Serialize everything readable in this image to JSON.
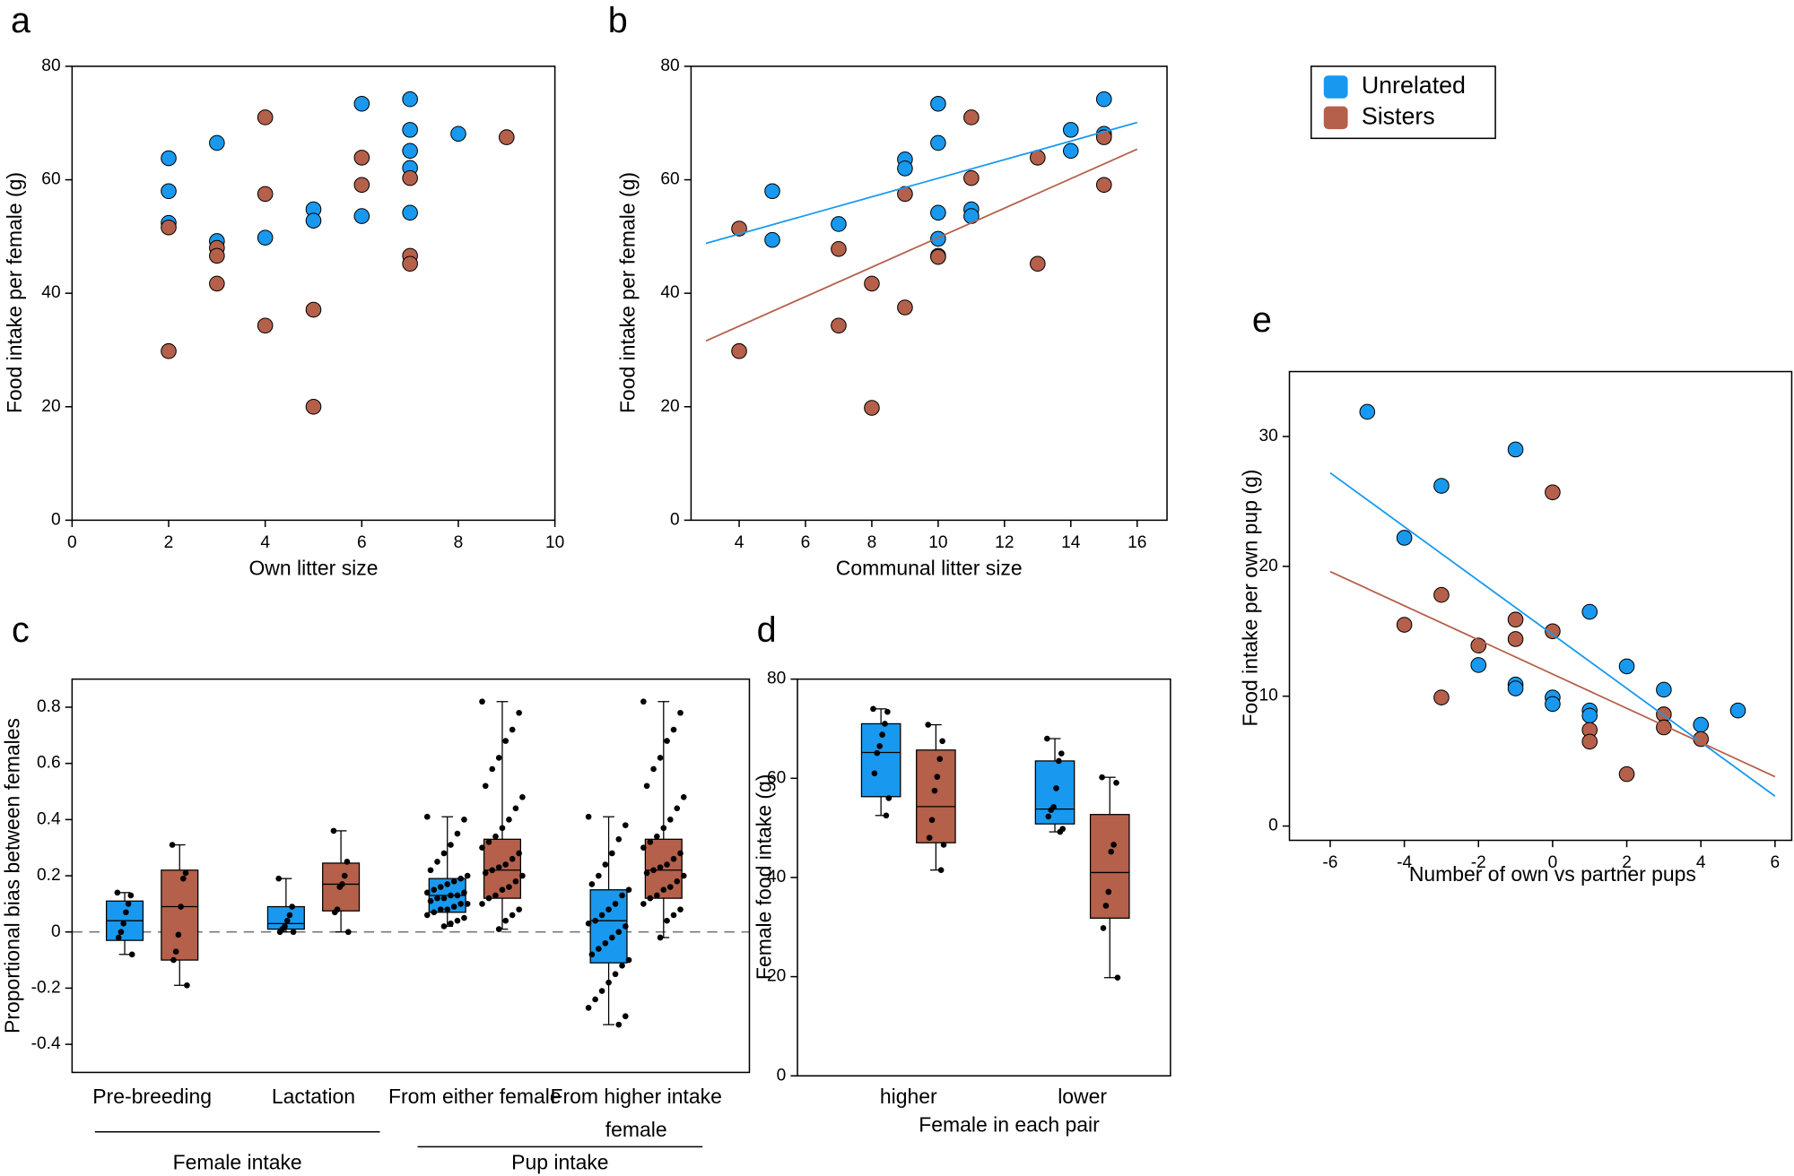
{
  "chart_data": [
    {
      "type": "scatter",
      "panel_label": "a",
      "x_label": "Own litter size",
      "y_label": "Food intake per female (g)",
      "xlim": [
        0,
        10
      ],
      "ylim": [
        0,
        80
      ],
      "xticks": [
        0,
        2,
        4,
        6,
        8,
        10
      ],
      "yticks": [
        0,
        20,
        40,
        60,
        80
      ],
      "series": [
        {
          "name": "Unrelated",
          "color": "#1899ef",
          "x": [
            2,
            2,
            2,
            3,
            3,
            4,
            5,
            5,
            6,
            6,
            7,
            7,
            7,
            7,
            7,
            8
          ],
          "values": [
            63.8,
            58,
            52.4,
            66.5,
            49.2,
            49.8,
            54.8,
            52.8,
            73.4,
            53.6,
            74.2,
            68.8,
            65.1,
            62.1,
            54.2,
            68.1
          ]
        },
        {
          "name": "Sisters",
          "color": "#b5604a",
          "x": [
            2,
            2,
            3,
            3,
            3,
            4,
            4,
            4,
            5,
            5,
            6,
            6,
            7,
            7,
            7,
            9
          ],
          "values": [
            51.6,
            29.8,
            48,
            46.6,
            41.7,
            71,
            57.5,
            34.3,
            37.1,
            20,
            63.9,
            59.1,
            60.3,
            46.6,
            45.2,
            67.5
          ]
        }
      ]
    },
    {
      "type": "scatter",
      "panel_label": "b",
      "x_label": "Communal litter size",
      "y_label": "Food intake per female (g)",
      "xlim": [
        2.55,
        16.9
      ],
      "ylim": [
        0,
        80
      ],
      "xticks": [
        4,
        6,
        8,
        10,
        12,
        14,
        16
      ],
      "yticks": [
        0,
        20,
        40,
        60,
        80
      ],
      "series": [
        {
          "name": "Unrelated",
          "color": "#1899ef",
          "x": [
            5,
            5,
            7,
            9,
            9,
            10,
            10,
            10,
            10,
            11,
            11,
            14,
            14,
            15,
            15
          ],
          "values": [
            58,
            49.4,
            52.2,
            63.6,
            62,
            73.4,
            66.5,
            54.2,
            49.6,
            54.8,
            53.6,
            68.8,
            65.1,
            74.2,
            68.1
          ],
          "fit_x": [
            3,
            16
          ],
          "fit_y": [
            48.8,
            70.1
          ]
        },
        {
          "name": "Sisters",
          "color": "#b5604a",
          "x": [
            4,
            4,
            7,
            7,
            8,
            8,
            9,
            9,
            10,
            10,
            11,
            11,
            13,
            13,
            15,
            15
          ],
          "values": [
            51.4,
            29.8,
            47.8,
            34.3,
            41.7,
            19.8,
            57.5,
            37.5,
            46.6,
            46.4,
            71,
            60.3,
            63.9,
            45.2,
            67.5,
            59.1
          ],
          "fit_x": [
            3,
            16
          ],
          "fit_y": [
            31.6,
            65.4
          ]
        }
      ]
    },
    {
      "type": "box",
      "panel_label": "c",
      "y_label": "Proportional bias between females",
      "ylim": [
        -0.5,
        0.9
      ],
      "yticks": [
        -0.4,
        -0.2,
        0,
        0.2,
        0.4,
        0.6,
        0.8
      ],
      "reference_line": 0,
      "categories": [
        "Pre-breeding",
        "Lactation",
        "From either female",
        "From higher intake female"
      ],
      "groups": [
        "Female intake",
        "Pup intake"
      ],
      "series": [
        {
          "name": "Unrelated",
          "color": "#1899ef",
          "boxes": [
            {
              "min": -0.08,
              "q1": -0.03,
              "median": 0.04,
              "q3": 0.11,
              "max": 0.14,
              "points": [
                0.14,
                0.13,
                0.1,
                0.07,
                0.03,
                0.0,
                -0.02,
                -0.08
              ]
            },
            {
              "min": 0,
              "q1": 0.01,
              "median": 0.03,
              "q3": 0.09,
              "max": 0.19,
              "points": [
                0.19,
                0.09,
                0.06,
                0.04,
                0.02,
                0.01,
                0.0,
                0.0
              ]
            },
            {
              "min": 0.02,
              "q1": 0.07,
              "median": 0.13,
              "q3": 0.19,
              "max": 0.41,
              "points": [
                0.41,
                0.4,
                0.35,
                0.31,
                0.28,
                0.25,
                0.22,
                0.2,
                0.19,
                0.18,
                0.17,
                0.16,
                0.15,
                0.14,
                0.14,
                0.13,
                0.13,
                0.12,
                0.12,
                0.11,
                0.1,
                0.1,
                0.09,
                0.08,
                0.08,
                0.07,
                0.06,
                0.05,
                0.04,
                0.03,
                0.02
              ]
            },
            {
              "min": -0.33,
              "q1": -0.11,
              "median": 0.04,
              "q3": 0.15,
              "max": 0.41,
              "points": [
                0.41,
                0.38,
                0.33,
                0.28,
                0.24,
                0.2,
                0.17,
                0.15,
                0.13,
                0.1,
                0.08,
                0.06,
                0.04,
                0.03,
                0.02,
                0.0,
                -0.02,
                -0.04,
                -0.06,
                -0.08,
                -0.1,
                -0.12,
                -0.15,
                -0.18,
                -0.21,
                -0.24,
                -0.27,
                -0.3,
                -0.33
              ]
            }
          ]
        },
        {
          "name": "Sisters",
          "color": "#b5604a",
          "boxes": [
            {
              "min": -0.19,
              "q1": -0.1,
              "median": 0.09,
              "q3": 0.22,
              "max": 0.31,
              "points": [
                0.31,
                0.21,
                0.19,
                0.09,
                -0.01,
                -0.07,
                -0.1,
                -0.19
              ]
            },
            {
              "min": 0,
              "q1": 0.075,
              "median": 0.17,
              "q3": 0.245,
              "max": 0.36,
              "points": [
                0.36,
                0.25,
                0.2,
                0.17,
                0.16,
                0.08,
                0.07,
                0.0
              ]
            },
            {
              "min": 0.01,
              "q1": 0.12,
              "median": 0.22,
              "q3": 0.33,
              "max": 0.82,
              "points": [
                0.82,
                0.78,
                0.72,
                0.68,
                0.62,
                0.58,
                0.52,
                0.48,
                0.44,
                0.4,
                0.37,
                0.34,
                0.32,
                0.3,
                0.28,
                0.26,
                0.24,
                0.23,
                0.22,
                0.21,
                0.2,
                0.18,
                0.16,
                0.15,
                0.13,
                0.12,
                0.1,
                0.08,
                0.06,
                0.04,
                0.01
              ]
            },
            {
              "min": -0.02,
              "q1": 0.12,
              "median": 0.22,
              "q3": 0.33,
              "max": 0.82,
              "points": [
                0.82,
                0.78,
                0.72,
                0.68,
                0.62,
                0.58,
                0.52,
                0.48,
                0.44,
                0.4,
                0.37,
                0.34,
                0.32,
                0.3,
                0.28,
                0.26,
                0.24,
                0.23,
                0.22,
                0.21,
                0.2,
                0.18,
                0.16,
                0.15,
                0.13,
                0.12,
                0.1,
                0.08,
                0.06,
                0.04,
                -0.02
              ]
            }
          ]
        }
      ]
    },
    {
      "type": "box",
      "panel_label": "d",
      "x_label": "Female in each pair",
      "y_label": "Female food intake (g)",
      "ylim": [
        0,
        80
      ],
      "yticks": [
        0,
        20,
        40,
        60,
        80
      ],
      "categories": [
        "higher",
        "lower"
      ],
      "series": [
        {
          "name": "Unrelated",
          "color": "#1899ef",
          "boxes": [
            {
              "min": 52.5,
              "q1": 56.3,
              "median": 65.2,
              "q3": 71,
              "max": 74,
              "points": [
                74,
                73.4,
                71,
                68.8,
                66.5,
                65.1,
                61,
                56,
                52.5
              ]
            },
            {
              "min": 49.2,
              "q1": 50.8,
              "median": 53.8,
              "q3": 63.5,
              "max": 68,
              "points": [
                68,
                65,
                63.5,
                58,
                54.2,
                53.6,
                52.3,
                49.8,
                49.2
              ]
            }
          ]
        },
        {
          "name": "Sisters",
          "color": "#b5604a",
          "boxes": [
            {
              "min": 41.5,
              "q1": 47,
              "median": 54.3,
              "q3": 65.7,
              "max": 70.8,
              "points": [
                70.8,
                67.5,
                63.9,
                60.3,
                57.5,
                51.6,
                48,
                46.6,
                41.5
              ]
            },
            {
              "min": 19.8,
              "q1": 31.8,
              "median": 41,
              "q3": 52.7,
              "max": 60.2,
              "points": [
                60.2,
                59.1,
                46.6,
                45.2,
                37.1,
                34.3,
                29.8,
                19.8
              ]
            }
          ]
        }
      ]
    },
    {
      "type": "scatter",
      "panel_label": "e",
      "x_label": "Number of own vs partner pups",
      "y_label": "Food intake per own pup (g)",
      "xlim": [
        -7.1,
        6.45
      ],
      "ylim": [
        -1.1,
        35
      ],
      "xticks": [
        -6,
        -4,
        -2,
        0,
        2,
        4,
        6
      ],
      "yticks": [
        0,
        10,
        20,
        30
      ],
      "series": [
        {
          "name": "Unrelated",
          "color": "#1899ef",
          "x": [
            -5,
            -4,
            -3,
            -2,
            -1,
            -1,
            -1,
            0,
            0,
            1,
            1,
            1,
            2,
            3,
            4,
            5
          ],
          "values": [
            31.9,
            22.2,
            26.2,
            12.4,
            29,
            10.9,
            10.6,
            9.9,
            9.4,
            16.5,
            8.9,
            8.5,
            12.3,
            10.5,
            7.8,
            8.9
          ],
          "fit_x": [
            -6,
            6
          ],
          "fit_y": [
            27.2,
            2.3
          ]
        },
        {
          "name": "Sisters",
          "color": "#b5604a",
          "x": [
            -4,
            -3,
            -3,
            -2,
            -1,
            -1,
            0,
            0,
            1,
            1,
            2,
            3,
            3,
            4
          ],
          "values": [
            15.5,
            17.8,
            9.9,
            13.9,
            15.9,
            14.4,
            25.7,
            15,
            7.4,
            6.5,
            4,
            8.6,
            7.6,
            6.7
          ],
          "fit_x": [
            -6,
            6
          ],
          "fit_y": [
            19.6,
            3.8
          ]
        }
      ]
    }
  ]
}
